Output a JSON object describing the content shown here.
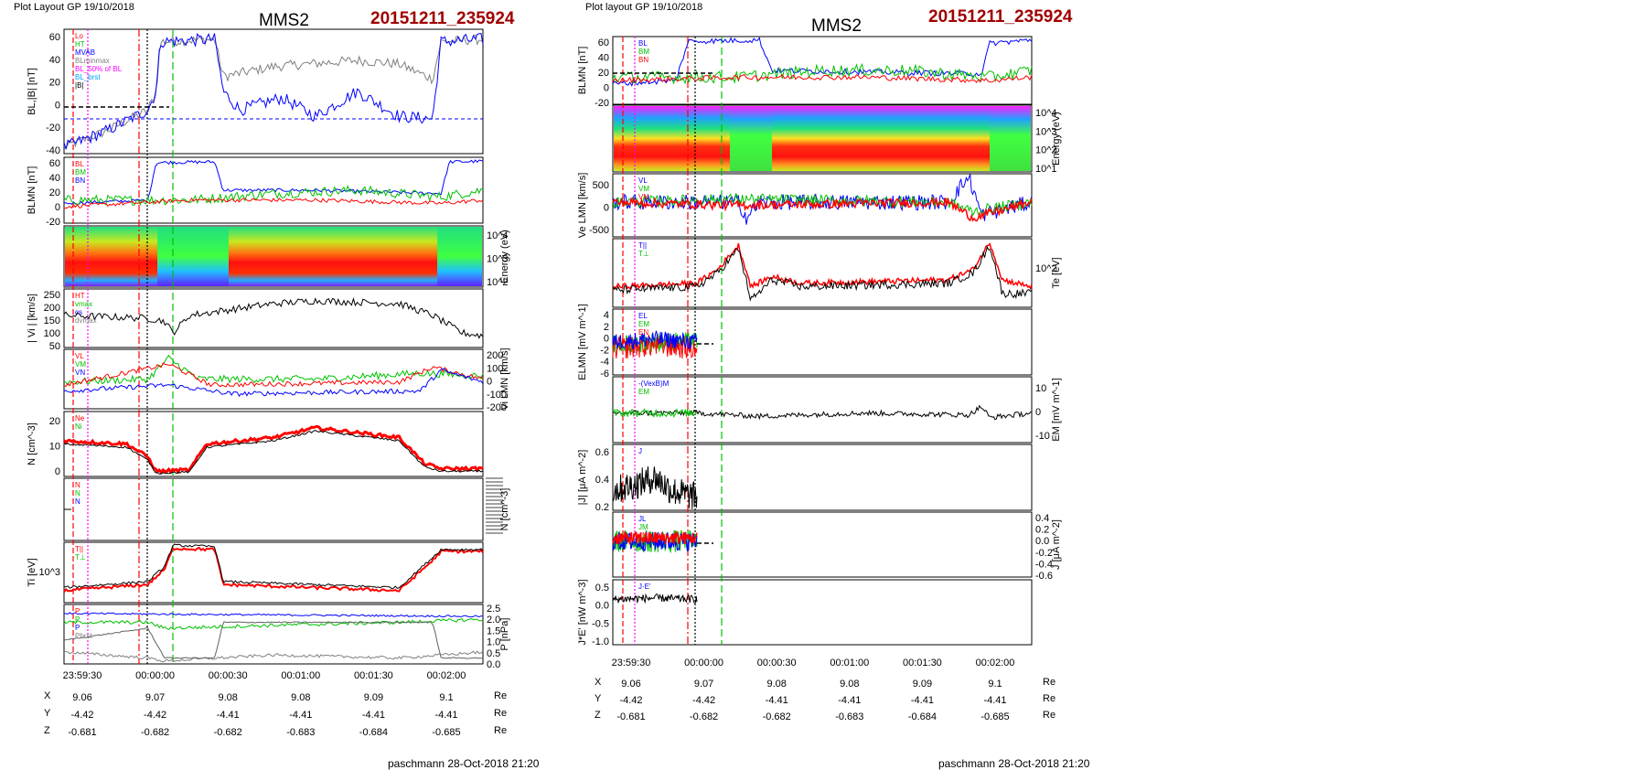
{
  "colors": {
    "blue": "#0000ff",
    "green": "#00c000",
    "red": "#ff0000",
    "black": "#000000",
    "magenta": "#ff00ff",
    "gray": "#808080",
    "title_red": "#a00000"
  },
  "chart_data": [
    {
      "type": "line",
      "header": "Plot Layout GP 19/10/2018",
      "title": "MMS2",
      "subtitle": "20151211_235924",
      "footer": "paschmann 28-Oct-2018 21:20",
      "time_ticks": [
        "23:59:30",
        "00:00:00",
        "00:00:30",
        "00:01:00",
        "00:01:30",
        "00:02:00"
      ],
      "ephemeris": [
        {
          "label": "X",
          "values": [
            "9.06",
            "9.07",
            "9.08",
            "9.08",
            "9.09",
            "9.1"
          ],
          "unit": "Re"
        },
        {
          "label": "Y",
          "values": [
            "-4.42",
            "-4.42",
            "-4.41",
            "-4.41",
            "-4.41",
            "-4.41"
          ],
          "unit": "Re"
        },
        {
          "label": "Z",
          "values": [
            "-0.681",
            "-0.682",
            "-0.682",
            "-0.683",
            "-0.684",
            "-0.685"
          ],
          "unit": "Re"
        }
      ],
      "panels": [
        {
          "key": "bl",
          "ylabel": "BL,|B| [nT]",
          "yticks": [
            "60",
            "40",
            "20",
            "0",
            "-20",
            "-40"
          ],
          "legend": [
            "Lo",
            "HT",
            "MVAB",
            "BLminmax",
            "BL_50% of BL",
            "BL_brst",
            "|B|"
          ]
        },
        {
          "key": "blmn",
          "ylabel": "BLMN [nT]",
          "yticks": [
            "60",
            "40",
            "20",
            "0",
            "-20"
          ],
          "legend": [
            "BL",
            "BM",
            "BN"
          ]
        },
        {
          "key": "spec_i",
          "ylabel": "Energy (eV)",
          "yticks": [
            "10^4",
            "10^3",
            "10^2"
          ]
        },
        {
          "key": "vi",
          "ylabel": "| Vi | [km/s]",
          "yticks": [
            "250",
            "200",
            "150",
            "100",
            "50"
          ],
          "legend": [
            "HT",
            "vmax",
            "cs",
            "dvmax"
          ]
        },
        {
          "key": "vlmn",
          "ylabel": "Vi LMN [km/s]",
          "yticks": [
            "200",
            "100",
            "0",
            "-100",
            "-200"
          ],
          "legend": [
            "VL",
            "VM",
            "VN"
          ]
        },
        {
          "key": "n",
          "ylabel": "N [cm^-3]",
          "yticks": [
            "20",
            "10",
            "0"
          ],
          "legend": [
            "Ne",
            "Ni"
          ]
        },
        {
          "key": "nn",
          "ylabel": "N [cm^-3]",
          "legend": [
            "N",
            "N",
            "N"
          ]
        },
        {
          "key": "ti",
          "ylabel": "Ti [eV]",
          "yticks": [
            "10^3"
          ],
          "legend": [
            "T||",
            "T⊥"
          ]
        },
        {
          "key": "p",
          "ylabel": "P [nPa]",
          "yticks": [
            "2.5",
            "2.0",
            "1.5",
            "1.0",
            "0.5",
            "0.0"
          ],
          "legend": [
            "P",
            "P",
            "P",
            "Pbrst"
          ]
        }
      ]
    },
    {
      "type": "line",
      "header": "Plot layout GP 19/10/2018",
      "title": "MMS2",
      "subtitle": "20151211_235924",
      "footer": "paschmann 28-Oct-2018 21:20",
      "time_ticks": [
        "23:59:30",
        "00:00:00",
        "00:00:30",
        "00:01:00",
        "00:01:30",
        "00:02:00"
      ],
      "ephemeris": [
        {
          "label": "X",
          "values": [
            "9.06",
            "9.07",
            "9.08",
            "9.08",
            "9.09",
            "9.1"
          ],
          "unit": "Re"
        },
        {
          "label": "Y",
          "values": [
            "-4.42",
            "-4.42",
            "-4.41",
            "-4.41",
            "-4.41",
            "-4.41"
          ],
          "unit": "Re"
        },
        {
          "label": "Z",
          "values": [
            "-0.681",
            "-0.682",
            "-0.682",
            "-0.683",
            "-0.684",
            "-0.685"
          ],
          "unit": "Re"
        }
      ],
      "panels": [
        {
          "key": "blmn",
          "ylabel": "BLMN [nT]",
          "yticks": [
            "60",
            "40",
            "20",
            "0",
            "-20"
          ],
          "legend": [
            "BL",
            "BM",
            "BN"
          ]
        },
        {
          "key": "spec_e",
          "ylabel": "Energy (eV)",
          "yticks": [
            "10^4",
            "10^3",
            "10^2",
            "10^1"
          ]
        },
        {
          "key": "ve",
          "ylabel": "Ve LMN [km/s]",
          "yticks": [
            "500",
            "0",
            "-500"
          ],
          "legend": [
            "VL",
            "VM",
            "VN"
          ]
        },
        {
          "key": "te",
          "ylabel": "Te [eV]",
          "yticks": [
            "10^2"
          ],
          "legend": [
            "T||",
            "T⊥"
          ]
        },
        {
          "key": "e",
          "ylabel": "ELMN [mV m^-1]",
          "yticks": [
            "4",
            "2",
            "0",
            "-2",
            "-4",
            "-6"
          ],
          "legend": [
            "EL",
            "EM",
            "EN"
          ]
        },
        {
          "key": "em",
          "ylabel": "EM [mV m^-1]",
          "yticks": [
            "10",
            "0",
            "-10"
          ],
          "legend": [
            "-(VexB)M",
            "EM"
          ]
        },
        {
          "key": "j",
          "ylabel": "|J| [μA m^-2]",
          "yticks": [
            "0.6",
            "0.4",
            "0.2"
          ],
          "legend": [
            "J"
          ]
        },
        {
          "key": "jlmn",
          "ylabel": "J [μA m^-2]",
          "yticks": [
            "0.4",
            "0.2",
            "0.0",
            "-0.2",
            "-0.4",
            "-0.6"
          ],
          "legend": [
            "JL",
            "JM",
            "JN"
          ]
        },
        {
          "key": "je",
          "ylabel": "J*E' [nW m^-3]",
          "yticks": [
            "0.5",
            "0.0",
            "-0.5",
            "-1.0"
          ],
          "legend": [
            "J·E'"
          ]
        }
      ]
    }
  ]
}
